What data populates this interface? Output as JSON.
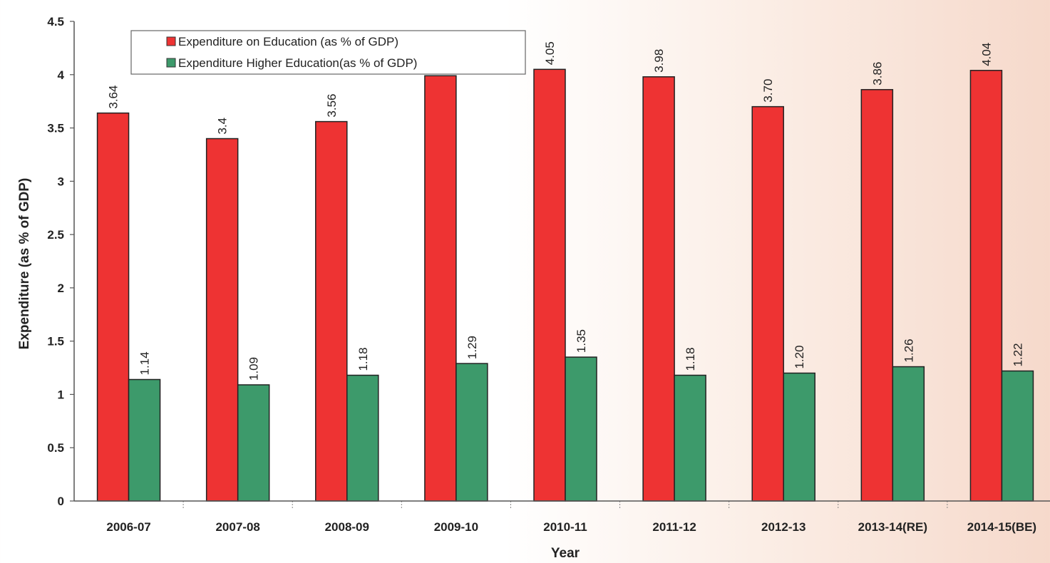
{
  "chart_data": {
    "type": "bar",
    "xlabel": "Year",
    "ylabel": "Expenditure (as % of GDP)",
    "ylim": [
      0,
      4.5
    ],
    "yticks": [
      "0",
      "0.5",
      "1",
      "1.5",
      "2",
      "2.5",
      "3",
      "3.5",
      "4",
      "4.5"
    ],
    "categories": [
      "2006-07",
      "2007-08",
      "2008-09",
      "2009-10",
      "2010-11",
      "2011-12",
      "2012-13",
      "2013-14(RE)",
      "2014-15(BE)"
    ],
    "legend_position": "top-left",
    "grid": false,
    "series": [
      {
        "name": "Expenditure on Education (as % of GDP)",
        "color": "#ee3333",
        "values": [
          3.64,
          3.4,
          3.56,
          3.99,
          4.05,
          3.98,
          3.7,
          3.86,
          4.04
        ],
        "labels": [
          "3.64",
          "3.4",
          "3.56",
          "",
          "4.05",
          "3.98",
          "3.70",
          "3.86",
          "4.04"
        ]
      },
      {
        "name": "Expenditure Higher Education(as % of GDP)",
        "color": "#3d9a6b",
        "values": [
          1.14,
          1.09,
          1.18,
          1.29,
          1.35,
          1.18,
          1.2,
          1.26,
          1.22
        ],
        "labels": [
          "1.14",
          "1.09",
          "1.18",
          "1.29",
          "1.35",
          "1.18",
          "1.20",
          "1.26",
          "1.22"
        ]
      }
    ]
  }
}
